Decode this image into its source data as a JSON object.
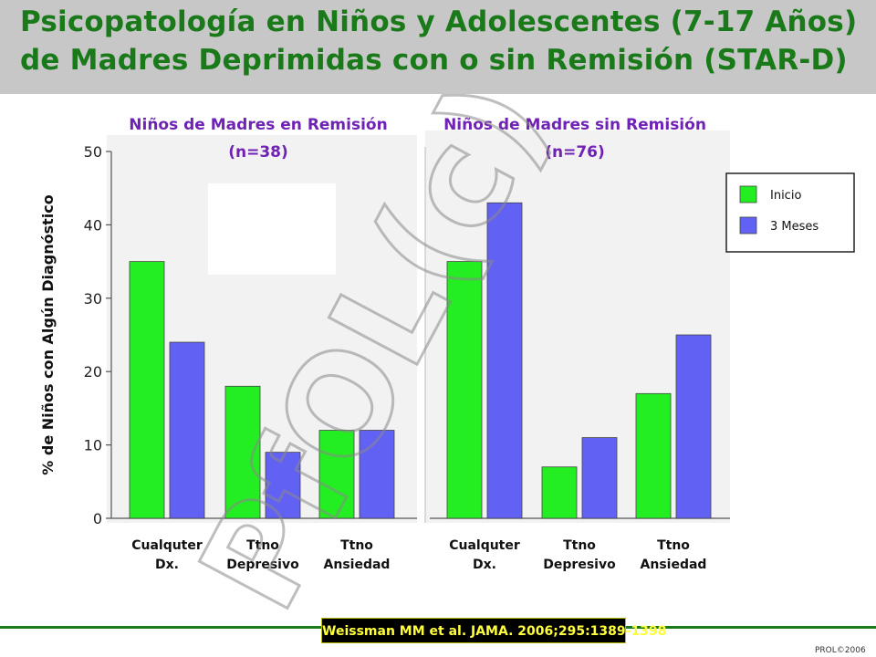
{
  "title": {
    "line1": "Psicopatología en Niños y Adolescentes (7-17 Años)",
    "line2": "de Madres Deprimidas con o sin Remisión (STAR-D)"
  },
  "citation": "Weissman MM et al. JAMA. 2006;295:1389-1398",
  "footer_mark": "PROL©2006",
  "watermark": "PfOL(c)",
  "colors": {
    "inicio": "#22ee22",
    "meses": "#6161f4",
    "title": "#1a7a1a",
    "panel_title": "#6f22b4"
  },
  "chart_data": {
    "type": "bar",
    "ylabel": "% de Niños con Algún Diagnóstico",
    "ylim": [
      0,
      50
    ],
    "yticks": [
      0,
      10,
      20,
      30,
      40,
      50
    ],
    "legend": {
      "placement": "right",
      "entries": [
        "Inicio",
        "3 Meses"
      ]
    },
    "panels": [
      {
        "title": "Niños de Madres en Remisión",
        "subtitle": "(n=38)",
        "categories": [
          [
            "Cualquter",
            "Dx."
          ],
          [
            "Ttno",
            "Depresivo"
          ],
          [
            "Ttno",
            "Ansiedad"
          ]
        ],
        "series": [
          {
            "name": "Inicio",
            "values": [
              35,
              18,
              12
            ]
          },
          {
            "name": "3 Meses",
            "values": [
              24,
              9,
              12
            ]
          }
        ]
      },
      {
        "title": "Niños de Madres sin Remisión",
        "subtitle": "(n=76)",
        "categories": [
          [
            "Cualquter",
            "Dx."
          ],
          [
            "Ttno",
            "Depresivo"
          ],
          [
            "Ttno",
            "Ansiedad"
          ]
        ],
        "series": [
          {
            "name": "Inicio",
            "values": [
              35,
              7,
              17
            ]
          },
          {
            "name": "3 Meses",
            "values": [
              43,
              11,
              25
            ]
          }
        ]
      }
    ]
  }
}
